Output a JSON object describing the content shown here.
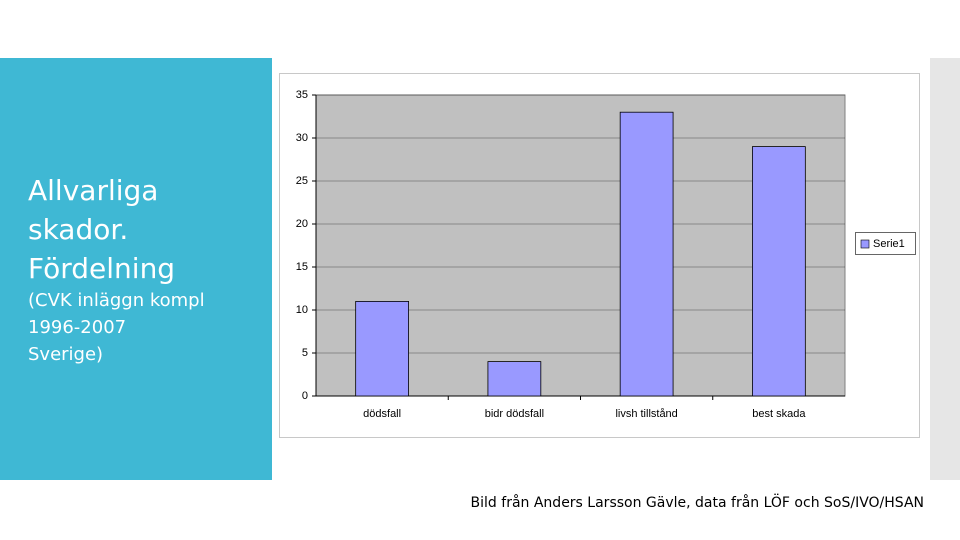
{
  "slide": {
    "title_lines": [
      "Allvarliga",
      "skador.",
      "Fördelning"
    ],
    "subtitle_lines": [
      "(CVK inläggn kompl",
      "1996-2007",
      "Sverige)"
    ],
    "caption": "Bild från Anders Larsson Gävle, data från LÖF och SoS/IVO/HSAN"
  },
  "chart_data": {
    "type": "bar",
    "categories": [
      "dödsfall",
      "bidr dödsfall",
      "livsh tillstånd",
      "best skada"
    ],
    "series": [
      {
        "name": "Serie1",
        "color": "#9999ff",
        "values": [
          11,
          4,
          33,
          29
        ]
      }
    ],
    "ylim": [
      0,
      35
    ],
    "yticks": [
      0,
      5,
      10,
      15,
      20,
      25,
      30,
      35
    ],
    "grid": true,
    "legend": "right"
  }
}
